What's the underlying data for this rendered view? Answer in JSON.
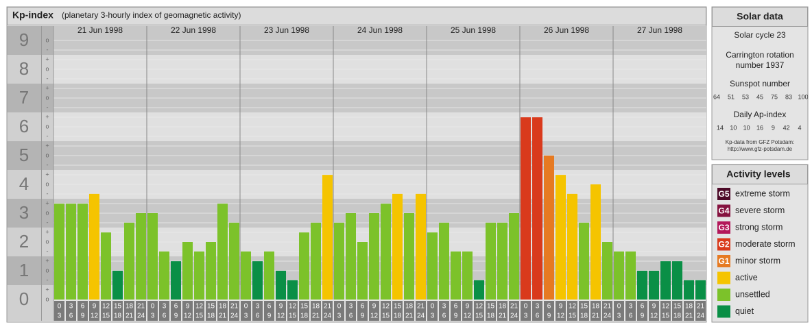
{
  "chart_data": {
    "type": "bar",
    "title": "Kp-index",
    "subtitle": "(planetary 3-hourly index of geomagnetic activity)",
    "days": [
      "21 Jun 1998",
      "22 Jun 1998",
      "23 Jun 1998",
      "24 Jun 1998",
      "25 Jun 1998",
      "26 Jun 1998",
      "27 Jun 1998"
    ],
    "hour_starts": [
      "0",
      "3",
      "6",
      "9",
      "12",
      "15",
      "18",
      "21"
    ],
    "hour_ends": [
      "3",
      "6",
      "9",
      "12",
      "15",
      "18",
      "21",
      "24"
    ],
    "values": [
      3.33,
      3.33,
      3.33,
      3.67,
      2.33,
      1,
      2.67,
      3,
      3,
      1.67,
      1.33,
      2,
      1.67,
      2,
      3.33,
      2.67,
      1.67,
      1.33,
      1.67,
      1,
      0.67,
      2.33,
      2.67,
      4.33,
      2.67,
      3,
      2,
      3,
      3.33,
      3.67,
      3,
      3.67,
      2.33,
      2.67,
      1.67,
      1.67,
      0.67,
      2.67,
      2.67,
      3,
      6.33,
      6.33,
      5,
      4.33,
      3.67,
      2.67,
      4,
      2,
      1.67,
      1.67,
      1,
      1,
      1.33,
      1.33,
      0.67,
      0.67
    ],
    "colors": [
      "#7cc22a",
      "#7cc22a",
      "#7cc22a",
      "#f5c400",
      "#7cc22a",
      "#0a8f46",
      "#7cc22a",
      "#7cc22a",
      "#7cc22a",
      "#7cc22a",
      "#0a8f46",
      "#7cc22a",
      "#7cc22a",
      "#7cc22a",
      "#7cc22a",
      "#7cc22a",
      "#7cc22a",
      "#0a8f46",
      "#7cc22a",
      "#0a8f46",
      "#0a8f46",
      "#7cc22a",
      "#7cc22a",
      "#f5c400",
      "#7cc22a",
      "#7cc22a",
      "#7cc22a",
      "#7cc22a",
      "#7cc22a",
      "#f5c400",
      "#7cc22a",
      "#f5c400",
      "#7cc22a",
      "#7cc22a",
      "#7cc22a",
      "#7cc22a",
      "#0a8f46",
      "#7cc22a",
      "#7cc22a",
      "#7cc22a",
      "#d93a1c",
      "#d93a1c",
      "#e67a22",
      "#f5c400",
      "#f5c400",
      "#7cc22a",
      "#f5c400",
      "#7cc22a",
      "#7cc22a",
      "#7cc22a",
      "#0a8f46",
      "#0a8f46",
      "#0a8f46",
      "#0a8f46",
      "#0a8f46",
      "#0a8f46"
    ],
    "ylim": [
      0,
      9.5
    ],
    "yticks": [
      0,
      1,
      2,
      3,
      4,
      5,
      6,
      7,
      8,
      9
    ],
    "minor_tick_labels": [
      "-",
      "o",
      "+"
    ],
    "grid": true
  },
  "solar_data": {
    "title": "Solar data",
    "cycle": "Solar cycle 23",
    "carrington": [
      "Carrington rotation",
      "number 1937"
    ],
    "sunspot_title": "Sunspot number",
    "sunspot": [
      64,
      51,
      53,
      45,
      75,
      83,
      100
    ],
    "ap_title": "Daily Ap-index",
    "ap": [
      14,
      10,
      10,
      16,
      9,
      42,
      4
    ],
    "source": [
      "Kp-data from GFZ Potsdam:",
      "http://www.gfz-potsdam.de"
    ]
  },
  "activity_levels": {
    "title": "Activity levels",
    "items": [
      {
        "badge": "G5",
        "label": "extreme storm",
        "color": "#4d0a28"
      },
      {
        "badge": "G4",
        "label": "severe storm",
        "color": "#85123f"
      },
      {
        "badge": "G3",
        "label": "strong storm",
        "color": "#b3175a"
      },
      {
        "badge": "G2",
        "label": "moderate storm",
        "color": "#d93a1c"
      },
      {
        "badge": "G1",
        "label": "minor storm",
        "color": "#e67a22"
      },
      {
        "label": "active",
        "color": "#f5c400"
      },
      {
        "label": "unsettled",
        "color": "#7cc22a"
      },
      {
        "label": "quiet",
        "color": "#0a8f46"
      }
    ]
  }
}
